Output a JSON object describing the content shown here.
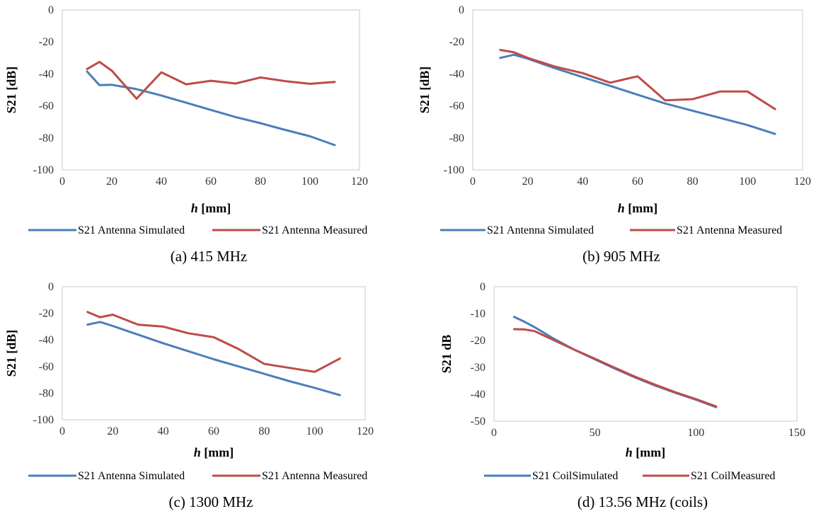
{
  "colors": {
    "simulated": "#4a7ebb",
    "measured": "#be4b48"
  },
  "chart_data": [
    {
      "type": "line",
      "caption": "(a) 415 MHz",
      "xlabel_var": "h",
      "xlabel_unit": " [mm]",
      "ylabel": "S21 [dB]",
      "xlim": [
        0,
        120
      ],
      "ylim": [
        -100,
        0
      ],
      "xticks": [
        0,
        20,
        40,
        60,
        80,
        100,
        120
      ],
      "yticks": [
        0,
        -20,
        -40,
        -60,
        -80,
        -100
      ],
      "grid": false,
      "legend_position": "bottom",
      "series": [
        {
          "name": "S21 Antenna Simulated",
          "color_key": "simulated",
          "x": [
            10,
            15,
            20,
            30,
            40,
            50,
            60,
            70,
            80,
            90,
            100,
            110
          ],
          "y": [
            -38.5,
            -47,
            -46.8,
            -49.5,
            -53.5,
            -58,
            -62.5,
            -67,
            -70.8,
            -75,
            -79,
            -84.5
          ]
        },
        {
          "name": "S21 Antenna Measured",
          "color_key": "measured",
          "x": [
            10,
            15,
            20,
            30,
            40,
            50,
            60,
            70,
            80,
            90,
            100,
            110
          ],
          "y": [
            -37,
            -32.5,
            -38,
            -55.5,
            -39,
            -46.5,
            -44.3,
            -46,
            -42.2,
            -44.5,
            -46.2,
            -45
          ]
        }
      ]
    },
    {
      "type": "line",
      "caption": "(b) 905 MHz",
      "xlabel_var": "h",
      "xlabel_unit": " [mm]",
      "ylabel": "S21 [dB]",
      "xlim": [
        0,
        120
      ],
      "ylim": [
        -100,
        0
      ],
      "xticks": [
        0,
        20,
        40,
        60,
        80,
        100,
        120
      ],
      "yticks": [
        0,
        -20,
        -40,
        -60,
        -80,
        -100
      ],
      "grid": false,
      "legend_position": "bottom",
      "series": [
        {
          "name": "S21 Antenna Simulated",
          "color_key": "simulated",
          "x": [
            10,
            15,
            20,
            30,
            40,
            50,
            60,
            70,
            80,
            90,
            100,
            110
          ],
          "y": [
            -30,
            -28,
            -30.5,
            -36.5,
            -42,
            -47.5,
            -53,
            -58.5,
            -63,
            -67.5,
            -72,
            -77.5
          ]
        },
        {
          "name": "S21 Antenna Measured",
          "color_key": "measured",
          "x": [
            10,
            15,
            20,
            30,
            40,
            50,
            60,
            70,
            80,
            90,
            100,
            110
          ],
          "y": [
            -25,
            -26.5,
            -30,
            -35.5,
            -39.5,
            -45.5,
            -41.5,
            -56.5,
            -55.8,
            -51,
            -51,
            -62
          ]
        }
      ]
    },
    {
      "type": "line",
      "caption": "(c) 1300 MHz",
      "xlabel_var": "h",
      "xlabel_unit": " [mm]",
      "ylabel": "S21 [dB]",
      "xlim": [
        0,
        120
      ],
      "ylim": [
        -100,
        0
      ],
      "xticks": [
        0,
        20,
        40,
        60,
        80,
        100,
        120
      ],
      "yticks": [
        0,
        -20,
        -40,
        -60,
        -80,
        -100
      ],
      "grid": false,
      "legend_position": "bottom",
      "series": [
        {
          "name": "S21 Antenna Simulated",
          "color_key": "simulated",
          "x": [
            10,
            15,
            20,
            30,
            40,
            50,
            60,
            70,
            80,
            90,
            100,
            110
          ],
          "y": [
            -28.5,
            -26.5,
            -29.5,
            -36,
            -42.5,
            -48.5,
            -54.5,
            -60,
            -65.5,
            -71,
            -76,
            -81.5
          ]
        },
        {
          "name": "S21 Antenna Measured",
          "color_key": "measured",
          "x": [
            10,
            15,
            20,
            30,
            40,
            50,
            60,
            70,
            80,
            90,
            100,
            110
          ],
          "y": [
            -19,
            -23,
            -21,
            -28.5,
            -30,
            -35,
            -38,
            -47,
            -58,
            -61,
            -64,
            -54
          ]
        }
      ]
    },
    {
      "type": "line",
      "caption": "(d) 13.56 MHz (coils)",
      "xlabel_var": "h",
      "xlabel_unit": " [mm]",
      "ylabel": "S21 dB",
      "xlim": [
        0,
        150
      ],
      "ylim": [
        -50,
        0
      ],
      "xticks": [
        0,
        50,
        100,
        150
      ],
      "yticks": [
        0,
        -10,
        -20,
        -30,
        -40,
        -50
      ],
      "grid": false,
      "legend_position": "bottom",
      "series": [
        {
          "name": "S21 CoilSimulated",
          "color_key": "simulated",
          "x": [
            10,
            15,
            20,
            30,
            40,
            50,
            60,
            70,
            80,
            90,
            100,
            110
          ],
          "y": [
            -11.2,
            -13,
            -15,
            -19.5,
            -23.5,
            -27,
            -30.5,
            -33.8,
            -36.8,
            -39.5,
            -42,
            -44.8
          ]
        },
        {
          "name": "S21 CoilMeasured",
          "color_key": "measured",
          "x": [
            10,
            15,
            20,
            30,
            40,
            50,
            60,
            70,
            80,
            90,
            100,
            110
          ],
          "y": [
            -15.8,
            -15.9,
            -16.5,
            -20,
            -23.5,
            -26.8,
            -30.2,
            -33.5,
            -36.5,
            -39.3,
            -41.8,
            -44.5
          ]
        }
      ]
    }
  ]
}
